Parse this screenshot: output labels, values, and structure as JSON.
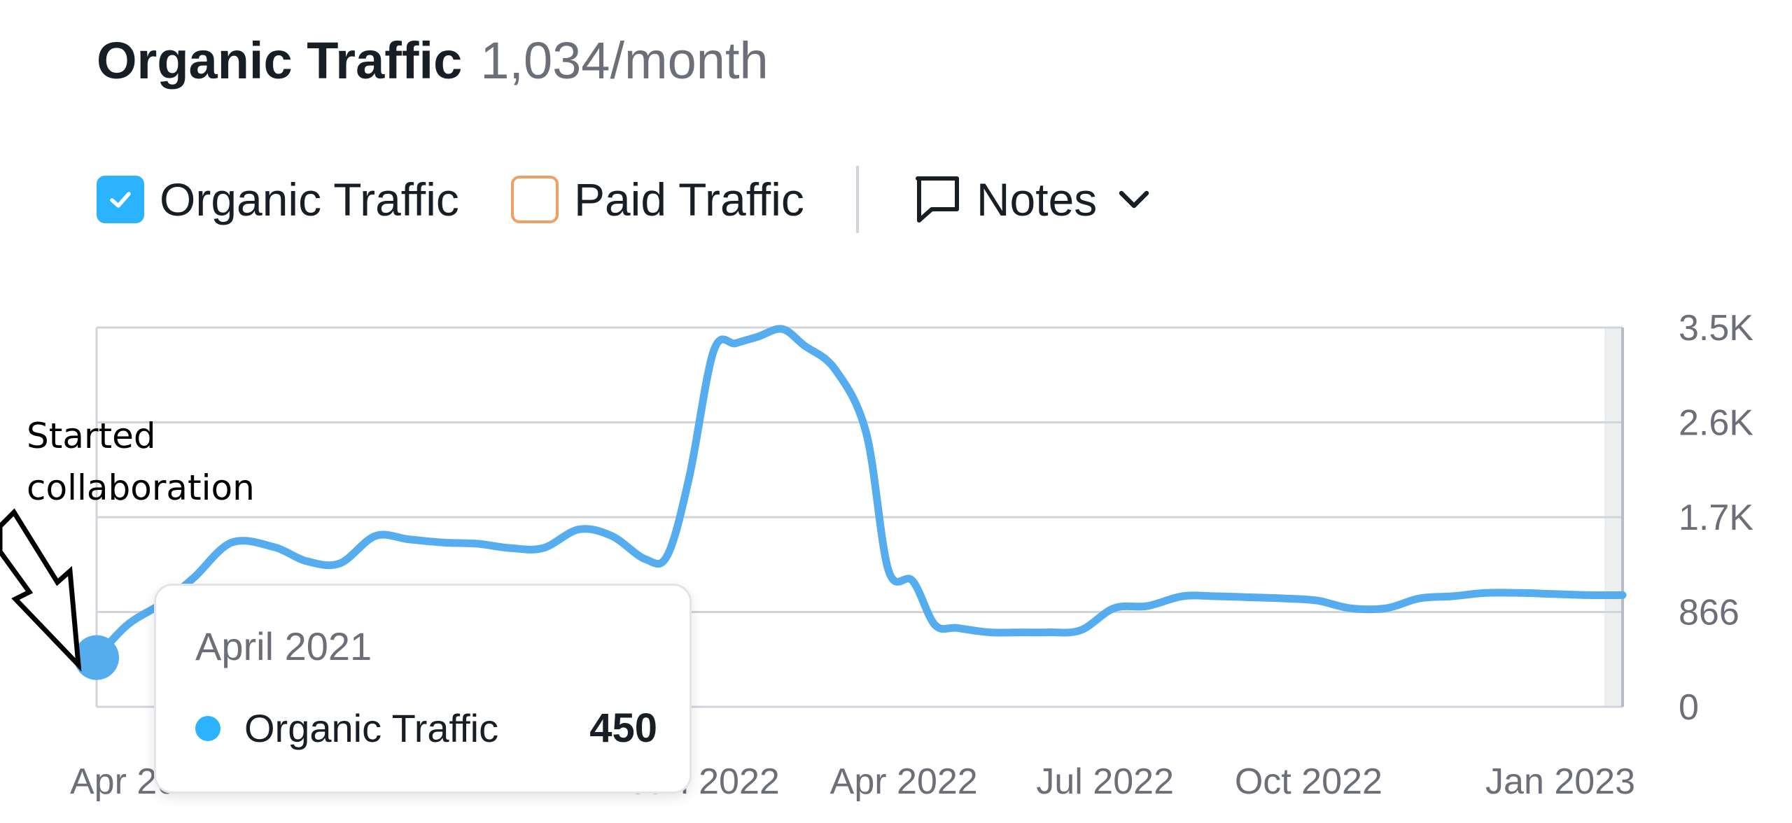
{
  "header": {
    "title": "Organic Traffic",
    "subtitle": "1,034/month"
  },
  "controls": {
    "organic_label": "Organic Traffic",
    "organic_checked": true,
    "paid_label": "Paid Traffic",
    "paid_checked": false,
    "notes_label": "Notes",
    "icons": [
      "check-icon",
      "notes-icon",
      "chevron-down-icon"
    ]
  },
  "colors": {
    "organic": "#55acee",
    "checkbox_accent": "#2bb3ff",
    "paid": "#f0a062",
    "grid": "#d1d4db",
    "text": "#181e25",
    "muted": "#6c6e79"
  },
  "annotation": {
    "text": "Started\ncollaboration"
  },
  "tooltip": {
    "date": "April 2021",
    "series": "Organic Traffic",
    "value": "450"
  },
  "chart_data": {
    "type": "line",
    "series": [
      {
        "name": "Organic Traffic",
        "x": [
          "2021-04-01",
          "2021-04-15",
          "2021-05-01",
          "2021-05-15",
          "2021-06-01",
          "2021-06-20",
          "2021-07-05",
          "2021-07-20",
          "2021-08-05",
          "2021-08-20",
          "2021-09-05",
          "2021-09-20",
          "2021-10-05",
          "2021-10-20",
          "2021-11-05",
          "2021-11-20",
          "2021-12-05",
          "2021-12-15",
          "2021-12-25",
          "2022-01-05",
          "2022-01-15",
          "2022-01-25",
          "2022-02-05",
          "2022-02-15",
          "2022-03-01",
          "2022-03-15",
          "2022-03-25",
          "2022-04-05",
          "2022-04-15",
          "2022-04-25",
          "2022-05-10",
          "2022-05-25",
          "2022-06-05",
          "2022-06-20",
          "2022-07-05",
          "2022-07-20",
          "2022-08-05",
          "2022-08-20",
          "2022-09-05",
          "2022-09-20",
          "2022-10-05",
          "2022-10-20",
          "2022-11-05",
          "2022-11-20",
          "2022-12-05",
          "2022-12-20",
          "2023-01-05",
          "2023-01-20",
          "2023-02-05",
          "2023-02-20"
        ],
        "y": [
          450,
          750,
          950,
          1180,
          1500,
          1460,
          1330,
          1310,
          1560,
          1530,
          1500,
          1490,
          1450,
          1450,
          1620,
          1560,
          1350,
          1380,
          2100,
          3250,
          3320,
          3380,
          3450,
          3300,
          3080,
          2500,
          1250,
          1150,
          750,
          720,
          680,
          680,
          680,
          700,
          900,
          920,
          1010,
          1010,
          1000,
          990,
          970,
          900,
          900,
          990,
          1010,
          1040,
          1040,
          1030,
          1020,
          1020
        ]
      }
    ],
    "x_ticks": [
      "Apr 2021",
      "Jan 2022",
      "Apr 2022",
      "Jul 2022",
      "Oct 2022",
      "Jan 2023"
    ],
    "y_ticks": [
      "0",
      "866",
      "1.7K",
      "2.6K",
      "3.5K"
    ],
    "y_tick_values": [
      0,
      866,
      1732,
      2598,
      3464
    ],
    "ylim": [
      0,
      3464
    ],
    "xlim": [
      "2021-04-01",
      "2023-02-20"
    ],
    "grid": true,
    "y_axis_side": "right",
    "highlight_point": {
      "x": "2021-04-01",
      "y": 450
    }
  }
}
